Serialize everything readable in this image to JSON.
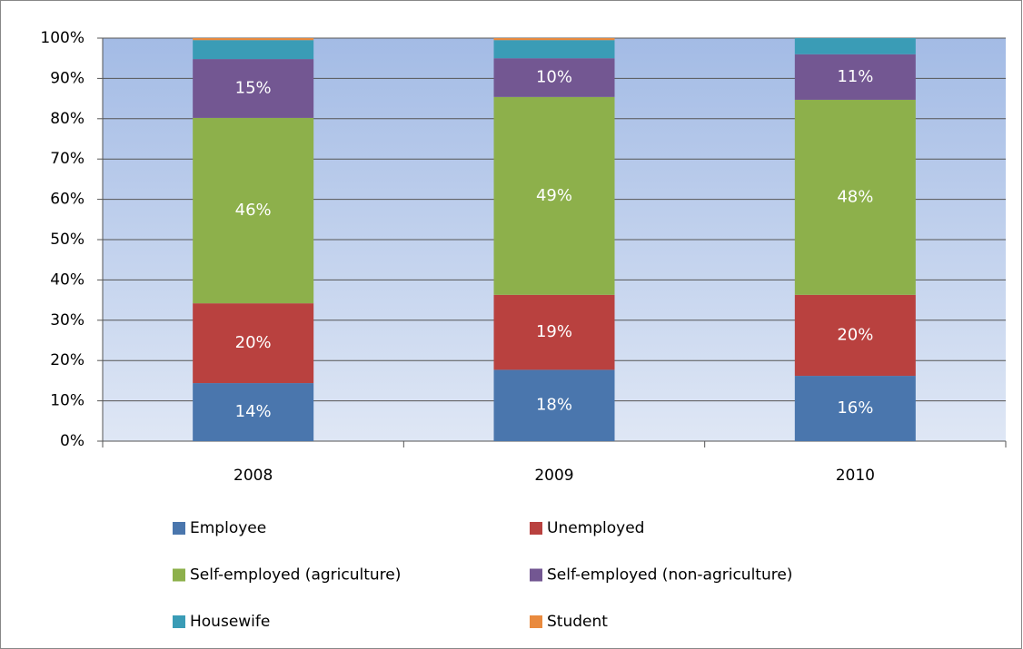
{
  "chart_data": {
    "type": "stacked_bar",
    "categories": [
      "2008",
      "2009",
      "2010"
    ],
    "series": [
      {
        "name": "Employee",
        "color": "#4a76ad",
        "values": [
          14.4,
          17.7,
          16.2
        ],
        "value_labels": [
          "14%",
          "18%",
          "16%"
        ]
      },
      {
        "name": "Unemployed",
        "color": "#b9413f",
        "values": [
          19.8,
          18.6,
          20.1
        ],
        "value_labels": [
          "20%",
          "19%",
          "20%"
        ]
      },
      {
        "name": "Self-employed (agriculture)",
        "color": "#8db04b",
        "values": [
          46.0,
          49.1,
          48.4
        ],
        "value_labels": [
          "46%",
          "49%",
          "48%"
        ]
      },
      {
        "name": "Self-employed (non-agriculture)",
        "color": "#735792",
        "values": [
          14.6,
          9.6,
          11.3
        ],
        "value_labels": [
          "15%",
          "10%",
          "11%"
        ]
      },
      {
        "name": "Housewife",
        "color": "#3a9cb6",
        "values": [
          4.7,
          4.5,
          4.0
        ]
      },
      {
        "name": "Student",
        "color": "#e98a3e",
        "values": [
          0.5,
          0.5,
          0
        ]
      }
    ],
    "ylim": [
      0,
      100
    ],
    "yticks": [
      {
        "value": 0,
        "label": "0%"
      },
      {
        "value": 10,
        "label": "10%"
      },
      {
        "value": 20,
        "label": "20%"
      },
      {
        "value": 30,
        "label": "30%"
      },
      {
        "value": 40,
        "label": "40%"
      },
      {
        "value": 50,
        "label": "50%"
      },
      {
        "value": 60,
        "label": "60%"
      },
      {
        "value": 70,
        "label": "70%"
      },
      {
        "value": 80,
        "label": "80%"
      },
      {
        "value": 90,
        "label": "90%"
      },
      {
        "value": 100,
        "label": "100%"
      }
    ],
    "grid": true
  }
}
